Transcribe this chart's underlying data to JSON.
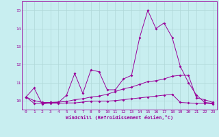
{
  "xlabel": "Windchill (Refroidissement éolien,°C)",
  "background_color": "#c8eef0",
  "grid_color": "#b0d8d8",
  "line_color": "#990099",
  "x_values": [
    0,
    1,
    2,
    3,
    4,
    5,
    6,
    7,
    8,
    9,
    10,
    11,
    12,
    13,
    14,
    15,
    16,
    17,
    18,
    19,
    20,
    21,
    22,
    23
  ],
  "series1": [
    10.2,
    10.7,
    9.8,
    9.9,
    9.9,
    10.3,
    11.5,
    10.4,
    11.7,
    11.6,
    10.6,
    10.6,
    11.2,
    11.4,
    13.5,
    15.0,
    14.0,
    14.3,
    13.5,
    11.9,
    11.0,
    10.3,
    9.9,
    9.85
  ],
  "series2": [
    10.2,
    9.85,
    9.85,
    9.85,
    9.85,
    9.87,
    9.87,
    9.92,
    9.97,
    9.97,
    9.97,
    10.0,
    10.05,
    10.1,
    10.15,
    10.2,
    10.25,
    10.3,
    10.35,
    9.9,
    9.87,
    9.85,
    9.85,
    9.82
  ],
  "series3": [
    10.2,
    10.0,
    9.9,
    9.9,
    9.92,
    9.95,
    10.05,
    10.1,
    10.2,
    10.25,
    10.35,
    10.5,
    10.65,
    10.75,
    10.9,
    11.05,
    11.1,
    11.2,
    11.35,
    11.4,
    11.4,
    10.15,
    10.05,
    9.9
  ],
  "ylim": [
    9.5,
    15.5
  ],
  "yticks": [
    10,
    11,
    12,
    13,
    14,
    15
  ],
  "xlim": [
    -0.5,
    23.5
  ],
  "xticks": [
    0,
    1,
    2,
    3,
    4,
    5,
    6,
    7,
    8,
    9,
    10,
    11,
    12,
    13,
    14,
    15,
    16,
    17,
    18,
    19,
    20,
    21,
    22,
    23
  ]
}
